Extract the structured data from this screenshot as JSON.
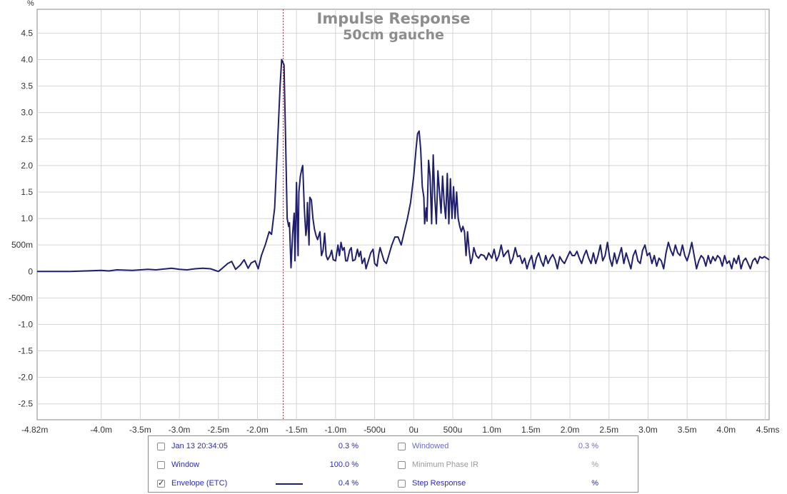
{
  "chart_data": {
    "type": "line",
    "title": "Impulse Response",
    "subtitle": "50cm gauche",
    "y_unit": "%",
    "x_unit": "ms",
    "xlim": [
      -4.82,
      4.55
    ],
    "ylim": [
      -2.8,
      4.95
    ],
    "grid": true,
    "cursor_x": -1.67,
    "y_ticks": [
      {
        "v": 4.5,
        "label": "4.5"
      },
      {
        "v": 4.0,
        "label": "4.0"
      },
      {
        "v": 3.5,
        "label": "3.5"
      },
      {
        "v": 3.0,
        "label": "3.0"
      },
      {
        "v": 2.5,
        "label": "2.5"
      },
      {
        "v": 2.0,
        "label": "2.0"
      },
      {
        "v": 1.5,
        "label": "1.5"
      },
      {
        "v": 1.0,
        "label": "1.0"
      },
      {
        "v": 0.5,
        "label": "500m"
      },
      {
        "v": 0.0,
        "label": "0"
      },
      {
        "v": -0.5,
        "label": "-500m"
      },
      {
        "v": -1.0,
        "label": "-1.0"
      },
      {
        "v": -1.5,
        "label": "-1.5"
      },
      {
        "v": -2.0,
        "label": "-2.0"
      },
      {
        "v": -2.5,
        "label": "-2.5"
      }
    ],
    "x_ticks": [
      {
        "v": -4.82,
        "label": "-4.82m"
      },
      {
        "v": -4.0,
        "label": "-4.0m"
      },
      {
        "v": -3.5,
        "label": "-3.5m"
      },
      {
        "v": -3.0,
        "label": "-3.0m"
      },
      {
        "v": -2.5,
        "label": "-2.5m"
      },
      {
        "v": -2.0,
        "label": "-2.0m"
      },
      {
        "v": -1.5,
        "label": "-1.5m"
      },
      {
        "v": -1.0,
        "label": "-1.0m"
      },
      {
        "v": -0.5,
        "label": "-500u"
      },
      {
        "v": 0.0,
        "label": "0u"
      },
      {
        "v": 0.5,
        "label": "500u"
      },
      {
        "v": 1.0,
        "label": "1.0m"
      },
      {
        "v": 1.5,
        "label": "1.5m"
      },
      {
        "v": 2.0,
        "label": "2.0m"
      },
      {
        "v": 2.5,
        "label": "2.5m"
      },
      {
        "v": 3.0,
        "label": "3.0m"
      },
      {
        "v": 3.5,
        "label": "3.5m"
      },
      {
        "v": 4.0,
        "label": "4.0m"
      },
      {
        "v": 4.5,
        "label": "4.5ms"
      }
    ],
    "series": [
      {
        "name": "Envelope (ETC)",
        "color": "#1f1f6e",
        "points": [
          [
            -4.82,
            0.0
          ],
          [
            -4.6,
            0.0
          ],
          [
            -4.4,
            0.0
          ],
          [
            -4.2,
            0.01
          ],
          [
            -4.0,
            0.02
          ],
          [
            -3.9,
            0.01
          ],
          [
            -3.8,
            0.03
          ],
          [
            -3.6,
            0.02
          ],
          [
            -3.4,
            0.04
          ],
          [
            -3.3,
            0.03
          ],
          [
            -3.1,
            0.06
          ],
          [
            -3.0,
            0.04
          ],
          [
            -2.9,
            0.03
          ],
          [
            -2.8,
            0.05
          ],
          [
            -2.7,
            0.06
          ],
          [
            -2.6,
            0.05
          ],
          [
            -2.5,
            0.0
          ],
          [
            -2.45,
            0.06
          ],
          [
            -2.38,
            0.15
          ],
          [
            -2.33,
            0.19
          ],
          [
            -2.28,
            0.04
          ],
          [
            -2.22,
            0.12
          ],
          [
            -2.17,
            0.22
          ],
          [
            -2.12,
            0.06
          ],
          [
            -2.08,
            0.16
          ],
          [
            -2.03,
            0.2
          ],
          [
            -1.99,
            0.05
          ],
          [
            -1.95,
            0.3
          ],
          [
            -1.9,
            0.5
          ],
          [
            -1.85,
            0.75
          ],
          [
            -1.82,
            0.7
          ],
          [
            -1.78,
            1.2
          ],
          [
            -1.74,
            2.5
          ],
          [
            -1.71,
            3.5
          ],
          [
            -1.69,
            4.0
          ],
          [
            -1.66,
            3.9
          ],
          [
            -1.64,
            2.5
          ],
          [
            -1.62,
            1.0
          ],
          [
            -1.6,
            0.85
          ],
          [
            -1.59,
            0.92
          ],
          [
            -1.57,
            0.07
          ],
          [
            -1.55,
            0.7
          ],
          [
            -1.53,
            1.1
          ],
          [
            -1.52,
            0.2
          ],
          [
            -1.5,
            1.68
          ],
          [
            -1.48,
            0.3
          ],
          [
            -1.47,
            1.5
          ],
          [
            -1.45,
            1.8
          ],
          [
            -1.43,
            1.95
          ],
          [
            -1.42,
            2.0
          ],
          [
            -1.4,
            1.2
          ],
          [
            -1.38,
            0.68
          ],
          [
            -1.37,
            0.8
          ],
          [
            -1.36,
            1.3
          ],
          [
            -1.34,
            0.5
          ],
          [
            -1.33,
            1.4
          ],
          [
            -1.31,
            1.35
          ],
          [
            -1.29,
            1.0
          ],
          [
            -1.27,
            0.8
          ],
          [
            -1.25,
            0.68
          ],
          [
            -1.23,
            0.6
          ],
          [
            -1.2,
            0.75
          ],
          [
            -1.18,
            0.3
          ],
          [
            -1.16,
            0.4
          ],
          [
            -1.14,
            0.72
          ],
          [
            -1.12,
            0.3
          ],
          [
            -1.1,
            0.22
          ],
          [
            -1.07,
            0.3
          ],
          [
            -1.05,
            0.4
          ],
          [
            -1.03,
            0.22
          ],
          [
            -1.0,
            0.2
          ],
          [
            -0.97,
            0.5
          ],
          [
            -0.95,
            0.3
          ],
          [
            -0.93,
            0.55
          ],
          [
            -0.91,
            0.4
          ],
          [
            -0.89,
            0.45
          ],
          [
            -0.87,
            0.2
          ],
          [
            -0.85,
            0.2
          ],
          [
            -0.82,
            0.4
          ],
          [
            -0.8,
            0.45
          ],
          [
            -0.78,
            0.2
          ],
          [
            -0.75,
            0.22
          ],
          [
            -0.72,
            0.42
          ],
          [
            -0.7,
            0.28
          ],
          [
            -0.68,
            0.38
          ],
          [
            -0.66,
            0.15
          ],
          [
            -0.63,
            0.25
          ],
          [
            -0.61,
            0.05
          ],
          [
            -0.58,
            0.2
          ],
          [
            -0.55,
            0.35
          ],
          [
            -0.52,
            0.42
          ],
          [
            -0.5,
            0.15
          ],
          [
            -0.47,
            0.1
          ],
          [
            -0.45,
            0.3
          ],
          [
            -0.43,
            0.45
          ],
          [
            -0.4,
            0.3
          ],
          [
            -0.38,
            0.2
          ],
          [
            -0.35,
            0.15
          ],
          [
            -0.32,
            0.3
          ],
          [
            -0.28,
            0.5
          ],
          [
            -0.24,
            0.65
          ],
          [
            -0.2,
            0.65
          ],
          [
            -0.16,
            0.5
          ],
          [
            -0.12,
            0.75
          ],
          [
            -0.08,
            1.0
          ],
          [
            -0.04,
            1.3
          ],
          [
            0.0,
            1.8
          ],
          [
            0.03,
            2.3
          ],
          [
            0.05,
            2.6
          ],
          [
            0.07,
            2.65
          ],
          [
            0.09,
            2.3
          ],
          [
            0.11,
            1.6
          ],
          [
            0.13,
            1.4
          ],
          [
            0.14,
            0.9
          ],
          [
            0.16,
            1.2
          ],
          [
            0.17,
            0.95
          ],
          [
            0.19,
            2.1
          ],
          [
            0.21,
            1.8
          ],
          [
            0.23,
            0.9
          ],
          [
            0.25,
            2.2
          ],
          [
            0.27,
            1.4
          ],
          [
            0.29,
            0.9
          ],
          [
            0.31,
            1.9
          ],
          [
            0.33,
            1.5
          ],
          [
            0.35,
            1.1
          ],
          [
            0.37,
            1.8
          ],
          [
            0.39,
            1.3
          ],
          [
            0.41,
            1.0
          ],
          [
            0.43,
            1.85
          ],
          [
            0.45,
            0.9
          ],
          [
            0.47,
            1.75
          ],
          [
            0.49,
            1.0
          ],
          [
            0.51,
            1.6
          ],
          [
            0.53,
            1.0
          ],
          [
            0.55,
            1.5
          ],
          [
            0.57,
            1.0
          ],
          [
            0.59,
            0.85
          ],
          [
            0.61,
            0.75
          ],
          [
            0.63,
            0.85
          ],
          [
            0.65,
            0.75
          ],
          [
            0.67,
            0.3
          ],
          [
            0.69,
            0.75
          ],
          [
            0.71,
            0.4
          ],
          [
            0.73,
            0.15
          ],
          [
            0.75,
            0.25
          ],
          [
            0.77,
            0.45
          ],
          [
            0.8,
            0.3
          ],
          [
            0.83,
            0.25
          ],
          [
            0.86,
            0.32
          ],
          [
            0.9,
            0.3
          ],
          [
            0.93,
            0.22
          ],
          [
            0.96,
            0.35
          ],
          [
            1.0,
            0.25
          ],
          [
            1.03,
            0.42
          ],
          [
            1.06,
            0.2
          ],
          [
            1.09,
            0.3
          ],
          [
            1.12,
            0.5
          ],
          [
            1.15,
            0.28
          ],
          [
            1.18,
            0.35
          ],
          [
            1.21,
            0.4
          ],
          [
            1.24,
            0.15
          ],
          [
            1.27,
            0.25
          ],
          [
            1.3,
            0.45
          ],
          [
            1.33,
            0.28
          ],
          [
            1.36,
            0.3
          ],
          [
            1.39,
            0.15
          ],
          [
            1.42,
            0.25
          ],
          [
            1.45,
            0.05
          ],
          [
            1.48,
            0.2
          ],
          [
            1.51,
            0.3
          ],
          [
            1.54,
            0.05
          ],
          [
            1.57,
            0.25
          ],
          [
            1.6,
            0.35
          ],
          [
            1.63,
            0.2
          ],
          [
            1.66,
            0.1
          ],
          [
            1.69,
            0.3
          ],
          [
            1.72,
            0.15
          ],
          [
            1.75,
            0.25
          ],
          [
            1.78,
            0.32
          ],
          [
            1.81,
            0.22
          ],
          [
            1.84,
            0.05
          ],
          [
            1.87,
            0.28
          ],
          [
            1.9,
            0.2
          ],
          [
            1.93,
            0.15
          ],
          [
            1.96,
            0.25
          ],
          [
            2.0,
            0.38
          ],
          [
            2.03,
            0.3
          ],
          [
            2.06,
            0.3
          ],
          [
            2.09,
            0.38
          ],
          [
            2.12,
            0.25
          ],
          [
            2.15,
            0.15
          ],
          [
            2.18,
            0.3
          ],
          [
            2.21,
            0.4
          ],
          [
            2.24,
            0.25
          ],
          [
            2.27,
            0.15
          ],
          [
            2.3,
            0.35
          ],
          [
            2.33,
            0.15
          ],
          [
            2.36,
            0.3
          ],
          [
            2.39,
            0.5
          ],
          [
            2.42,
            0.2
          ],
          [
            2.45,
            0.3
          ],
          [
            2.48,
            0.55
          ],
          [
            2.51,
            0.25
          ],
          [
            2.54,
            0.1
          ],
          [
            2.57,
            0.35
          ],
          [
            2.6,
            0.15
          ],
          [
            2.63,
            0.3
          ],
          [
            2.66,
            0.45
          ],
          [
            2.69,
            0.15
          ],
          [
            2.72,
            0.35
          ],
          [
            2.75,
            0.2
          ],
          [
            2.78,
            0.05
          ],
          [
            2.81,
            0.3
          ],
          [
            2.84,
            0.4
          ],
          [
            2.87,
            0.2
          ],
          [
            2.9,
            0.15
          ],
          [
            2.93,
            0.4
          ],
          [
            2.96,
            0.5
          ],
          [
            2.99,
            0.3
          ],
          [
            3.02,
            0.35
          ],
          [
            3.05,
            0.15
          ],
          [
            3.08,
            0.3
          ],
          [
            3.11,
            0.1
          ],
          [
            3.14,
            0.25
          ],
          [
            3.17,
            0.2
          ],
          [
            3.2,
            0.05
          ],
          [
            3.23,
            0.35
          ],
          [
            3.26,
            0.55
          ],
          [
            3.29,
            0.4
          ],
          [
            3.32,
            0.3
          ],
          [
            3.35,
            0.5
          ],
          [
            3.38,
            0.35
          ],
          [
            3.41,
            0.3
          ],
          [
            3.44,
            0.5
          ],
          [
            3.47,
            0.3
          ],
          [
            3.5,
            0.2
          ],
          [
            3.53,
            0.35
          ],
          [
            3.56,
            0.55
          ],
          [
            3.59,
            0.3
          ],
          [
            3.62,
            0.05
          ],
          [
            3.65,
            0.2
          ],
          [
            3.68,
            0.3
          ],
          [
            3.71,
            0.25
          ],
          [
            3.74,
            0.1
          ],
          [
            3.77,
            0.3
          ],
          [
            3.8,
            0.15
          ],
          [
            3.83,
            0.28
          ],
          [
            3.86,
            0.2
          ],
          [
            3.89,
            0.3
          ],
          [
            3.92,
            0.25
          ],
          [
            3.95,
            0.1
          ],
          [
            3.98,
            0.3
          ],
          [
            4.01,
            0.15
          ],
          [
            4.04,
            0.2
          ],
          [
            4.07,
            0.05
          ],
          [
            4.1,
            0.25
          ],
          [
            4.13,
            0.15
          ],
          [
            4.16,
            0.3
          ],
          [
            4.19,
            0.05
          ],
          [
            4.22,
            0.2
          ],
          [
            4.25,
            0.25
          ],
          [
            4.28,
            0.15
          ],
          [
            4.31,
            0.05
          ],
          [
            4.34,
            0.2
          ],
          [
            4.37,
            0.25
          ],
          [
            4.4,
            0.15
          ],
          [
            4.43,
            0.28
          ],
          [
            4.46,
            0.25
          ],
          [
            4.49,
            0.28
          ],
          [
            4.52,
            0.25
          ],
          [
            4.55,
            0.22
          ]
        ]
      }
    ]
  },
  "legend": {
    "rows": [
      {
        "check": false,
        "label": "Jan 13 20:34:05",
        "label_color": "#2b2bb8",
        "value": "0.3 %",
        "value_color": "#2b2bb8",
        "check2": false,
        "label2": "Windowed",
        "label2_color": "#6a6ad0",
        "value2": "0.3 %",
        "value2_color": "#6a6ad0"
      },
      {
        "check": false,
        "label": "Window",
        "label_color": "#2b2bb8",
        "value": "100.0 %",
        "value_color": "#2b2bb8",
        "check2": false,
        "label2": "Minimum Phase IR",
        "label2_color": "#9a9a9a",
        "value2": "%",
        "value2_color": "#9a9a9a"
      },
      {
        "check": true,
        "label": "Envelope (ETC)",
        "label_color": "#2b2bb8",
        "value": "0.4 %",
        "value_color": "#2b2bb8",
        "check2": false,
        "label2": "Step Response",
        "label2_color": "#2b2bb8",
        "value2": "%",
        "value2_color": "#2b2bb8"
      }
    ]
  }
}
